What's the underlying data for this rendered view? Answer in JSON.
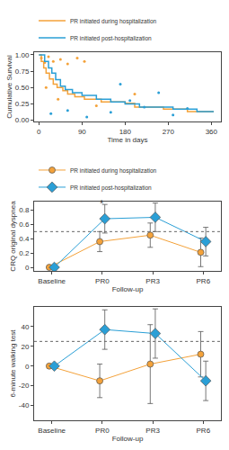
{
  "chart_data": [
    {
      "type": "step",
      "xlabel": "Time in days",
      "ylabel": "Cumulative Survival",
      "xlim": [
        -10,
        380
      ],
      "xticks": [
        0,
        90,
        180,
        270,
        360
      ],
      "ylim": [
        -0.02,
        1.04
      ],
      "yticks": [
        {
          "value": 0,
          "label": "0.00"
        },
        {
          "value": 0.25,
          "label": "0.25"
        },
        {
          "value": 0.5,
          "label": "0.50"
        },
        {
          "value": 0.75,
          "label": "0.75"
        },
        {
          "value": 1,
          "label": "1.00"
        }
      ],
      "legend": "top",
      "series": [
        {
          "name": "PR initiated during hospitalization",
          "color": "#f4a23a",
          "x": [
            0,
            5,
            10,
            15,
            22,
            30,
            38,
            50,
            60,
            75,
            95,
            130,
            180,
            200,
            260,
            310,
            365
          ],
          "values": [
            1.0,
            0.9,
            0.8,
            0.72,
            0.63,
            0.55,
            0.5,
            0.45,
            0.4,
            0.36,
            0.32,
            0.28,
            0.26,
            0.2,
            0.17,
            0.13,
            0.13
          ],
          "points_x": [
            5,
            12,
            20,
            30,
            45,
            60,
            80,
            95,
            15,
            40,
            120,
            200
          ],
          "points_y": [
            0.95,
            0.88,
            0.97,
            0.9,
            0.93,
            0.86,
            0.95,
            0.9,
            0.5,
            0.32,
            0.22,
            0.4
          ]
        },
        {
          "name": "PR initiated post-hospitalization",
          "color": "#2a9fd6",
          "x": [
            0,
            12,
            20,
            27,
            35,
            45,
            55,
            70,
            90,
            120,
            150,
            180,
            210,
            280,
            330,
            365
          ],
          "values": [
            1.0,
            0.9,
            0.8,
            0.72,
            0.62,
            0.52,
            0.47,
            0.42,
            0.38,
            0.32,
            0.28,
            0.25,
            0.2,
            0.17,
            0.13,
            0.13
          ],
          "points_x": [
            25,
            60,
            100,
            150,
            190,
            220,
            280,
            310,
            170,
            250
          ],
          "points_y": [
            0.1,
            0.15,
            0.05,
            0.12,
            0.3,
            0.2,
            0.08,
            0.18,
            0.55,
            0.42
          ]
        }
      ]
    },
    {
      "type": "line",
      "xlabel": "Follow-up",
      "ylabel": "CRQ original dyspnea",
      "categories": [
        "Baseline",
        "PR0",
        "PR3",
        "PR6"
      ],
      "ylim": [
        -0.05,
        0.92
      ],
      "yticks": [
        0,
        0.2,
        0.4,
        0.6,
        0.8
      ],
      "reference_line": 0.5,
      "annotations": [
        {
          "x": "PR0",
          "y": 0.9,
          "text": "*"
        }
      ],
      "legend": "top",
      "series": [
        {
          "name": "PR initiated during hospitalization",
          "color": "#f4a23a",
          "marker": "circle",
          "values": [
            0,
            0.36,
            0.45,
            0.21
          ],
          "errors": [
            0,
            0.14,
            0.17,
            0.2
          ]
        },
        {
          "name": "PR initiated post-hospitalization",
          "color": "#2a9fd6",
          "marker": "diamond",
          "values": [
            0,
            0.68,
            0.7,
            0.36
          ],
          "errors": [
            0,
            0.2,
            0.2,
            0.2
          ]
        }
      ]
    },
    {
      "type": "line",
      "xlabel": "Follow-up",
      "ylabel": "6-minute walking test",
      "categories": [
        "Baseline",
        "PR0",
        "PR3",
        "PR6"
      ],
      "ylim": [
        -55,
        60
      ],
      "yticks": [
        -40,
        -20,
        0,
        20,
        40
      ],
      "reference_line": 25,
      "series": [
        {
          "name": "PR initiated during hospitalization",
          "color": "#f4a23a",
          "marker": "circle",
          "values": [
            0,
            -15,
            2,
            12
          ],
          "errors": [
            0,
            17,
            40,
            23
          ]
        },
        {
          "name": "PR initiated post-hospitalization",
          "color": "#2a9fd6",
          "marker": "diamond",
          "values": [
            0,
            37,
            33,
            -15
          ],
          "errors": [
            0,
            20,
            25,
            20
          ]
        }
      ]
    }
  ]
}
